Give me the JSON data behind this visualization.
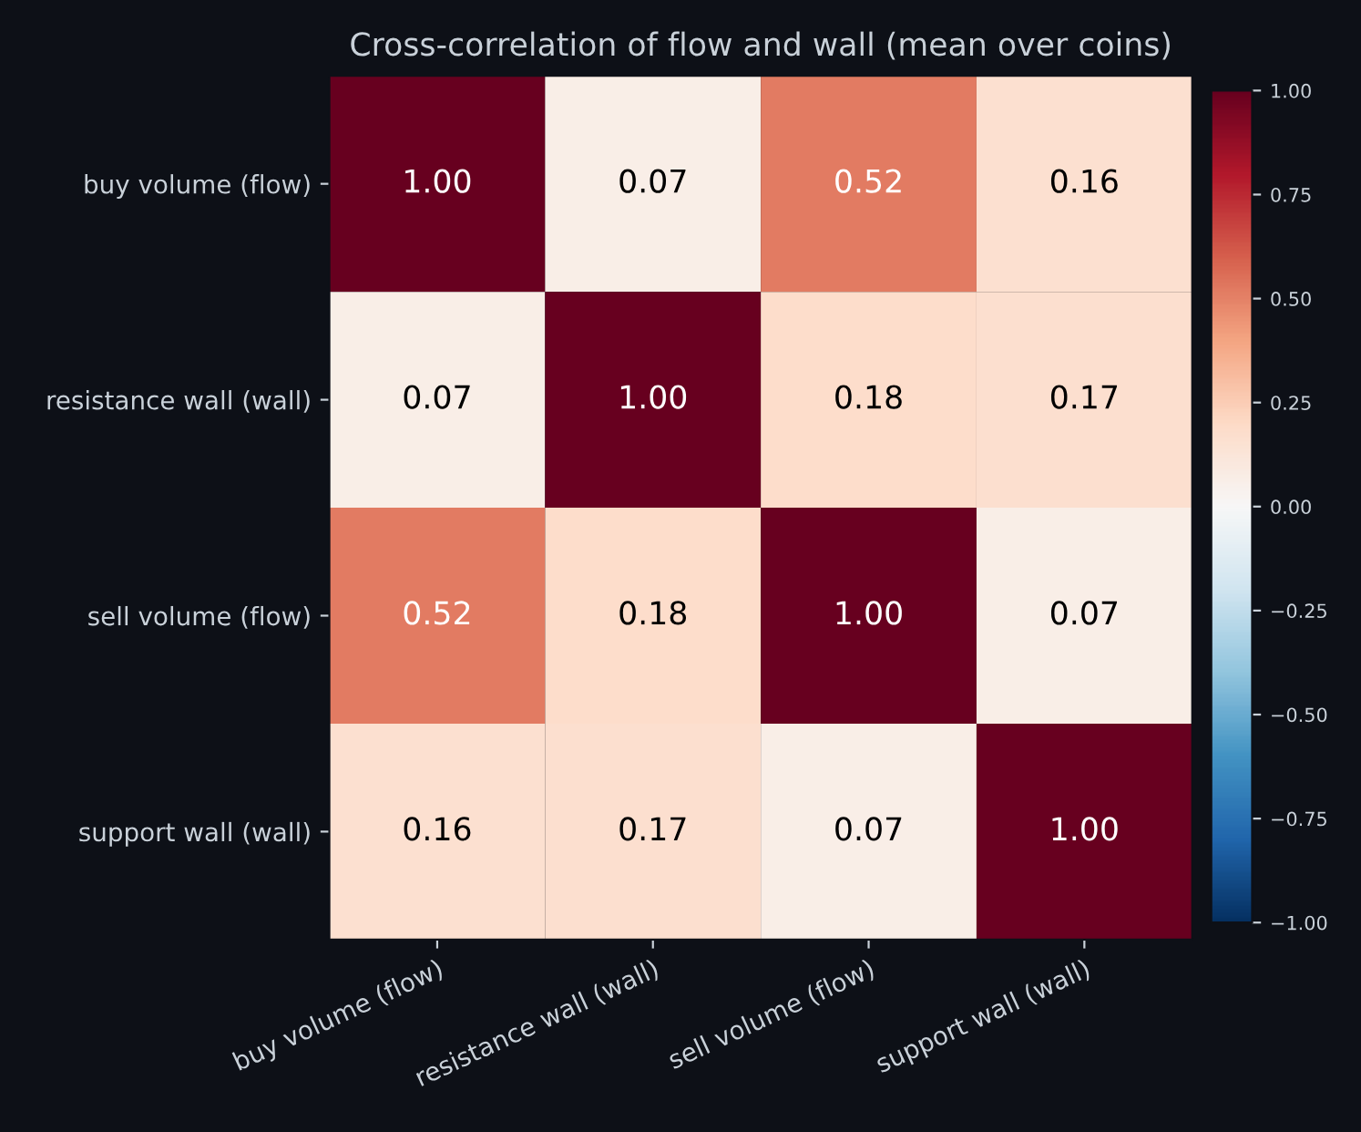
{
  "chart_data": {
    "type": "heatmap",
    "title": "Cross-correlation of flow and wall (mean over coins)",
    "categories": [
      "buy volume (flow)",
      "resistance wall (wall)",
      "sell volume (flow)",
      "support wall (wall)"
    ],
    "y_categories": [
      "buy volume (flow)",
      "resistance wall (wall)",
      "sell volume (flow)",
      "support wall (wall)"
    ],
    "cells": [
      [
        1.0,
        0.07,
        0.52,
        0.16
      ],
      [
        0.07,
        1.0,
        0.18,
        0.17
      ],
      [
        0.52,
        0.18,
        1.0,
        0.07
      ],
      [
        0.16,
        0.17,
        0.07,
        1.0
      ]
    ],
    "cell_labels": [
      [
        "1.00",
        "0.07",
        "0.52",
        "0.16"
      ],
      [
        "0.07",
        "1.00",
        "0.18",
        "0.17"
      ],
      [
        "0.52",
        "0.18",
        "1.00",
        "0.07"
      ],
      [
        "0.16",
        "0.17",
        "0.07",
        "1.00"
      ]
    ],
    "clim": [
      -1.0,
      1.0
    ],
    "cticks": [
      {
        "value": -1.0,
        "label": "−1.00"
      },
      {
        "value": -0.75,
        "label": "−0.75"
      },
      {
        "value": -0.5,
        "label": "−0.50"
      },
      {
        "value": -0.25,
        "label": "−0.25"
      },
      {
        "value": 0.0,
        "label": "0.00"
      },
      {
        "value": 0.25,
        "label": "0.25"
      },
      {
        "value": 0.5,
        "label": "0.50"
      },
      {
        "value": 0.75,
        "label": "0.75"
      },
      {
        "value": 1.0,
        "label": "1.00"
      }
    ]
  }
}
